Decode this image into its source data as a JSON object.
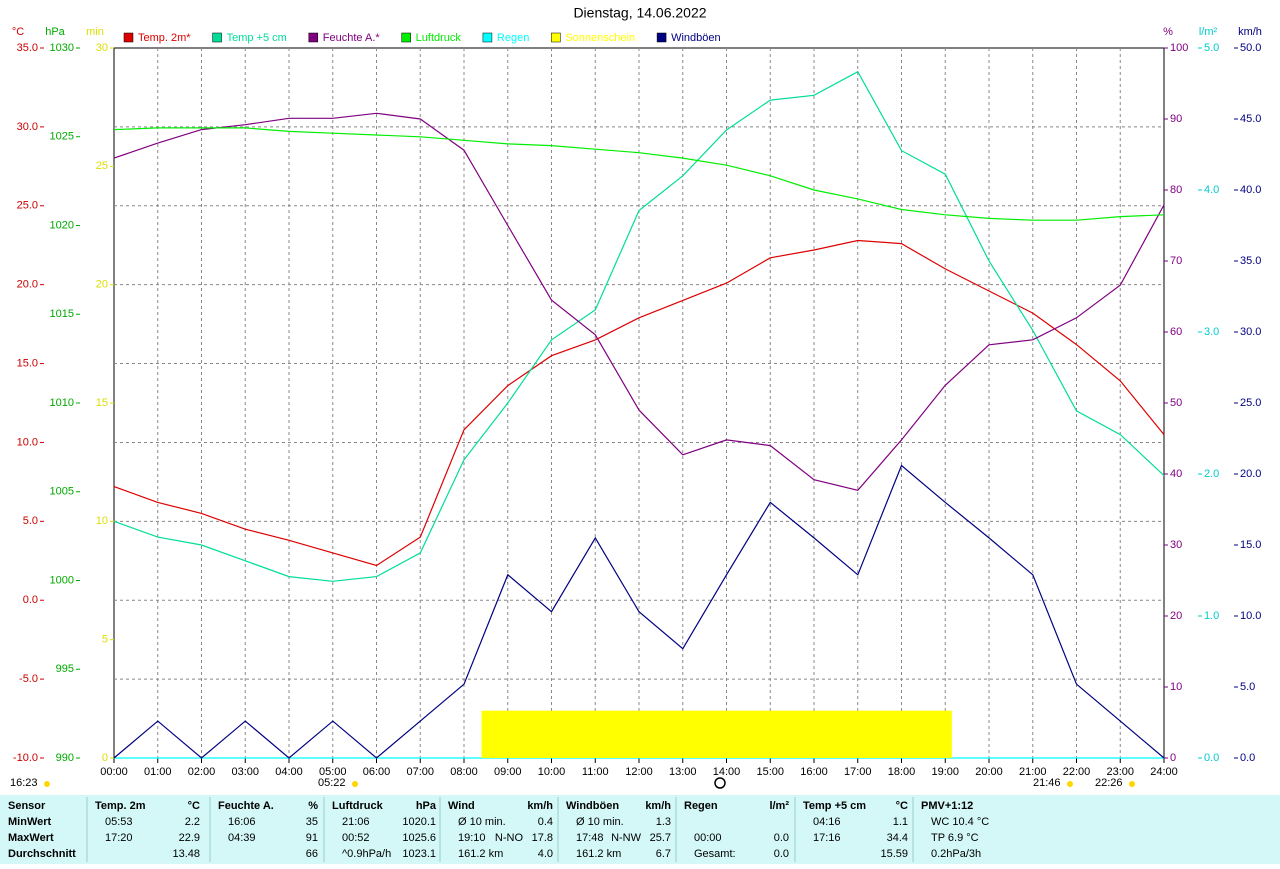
{
  "chart_data": {
    "type": "line",
    "title": "Dienstag, 14.06.2022",
    "grid": true,
    "x": [
      0,
      1,
      2,
      3,
      4,
      5,
      6,
      7,
      8,
      9,
      10,
      11,
      12,
      13,
      14,
      15,
      16,
      17,
      18,
      19,
      20,
      21,
      22,
      23,
      24
    ],
    "xlim": [
      0,
      24
    ],
    "xticks": [
      {
        "value": 0,
        "label": "00:00"
      },
      {
        "value": 1,
        "label": "01:00"
      },
      {
        "value": 2,
        "label": "02:00"
      },
      {
        "value": 3,
        "label": "03:00"
      },
      {
        "value": 4,
        "label": "04:00"
      },
      {
        "value": 5,
        "label": "05:00"
      },
      {
        "value": 6,
        "label": "06:00"
      },
      {
        "value": 7,
        "label": "07:00"
      },
      {
        "value": 8,
        "label": "08:00"
      },
      {
        "value": 9,
        "label": "09:00"
      },
      {
        "value": 10,
        "label": "10:00"
      },
      {
        "value": 11,
        "label": "11:00"
      },
      {
        "value": 12,
        "label": "12:00"
      },
      {
        "value": 13,
        "label": "13:00"
      },
      {
        "value": 14,
        "label": "14:00"
      },
      {
        "value": 15,
        "label": "15:00"
      },
      {
        "value": 16,
        "label": "16:00"
      },
      {
        "value": 17,
        "label": "17:00"
      },
      {
        "value": 18,
        "label": "18:00"
      },
      {
        "value": 19,
        "label": "19:00"
      },
      {
        "value": 20,
        "label": "20:00"
      },
      {
        "value": 21,
        "label": "21:00"
      },
      {
        "value": 22,
        "label": "22:00"
      },
      {
        "value": 23,
        "label": "23:00"
      },
      {
        "value": 24,
        "label": "24:00"
      }
    ],
    "axes": [
      {
        "label": "°C",
        "color": "#cc0000",
        "side": "left",
        "lim": [
          -10,
          35
        ],
        "grid": true,
        "ticks": [
          {
            "value": -10,
            "label": "-10.0"
          },
          {
            "value": -5,
            "label": "-5.0"
          },
          {
            "value": 0,
            "label": "0.0"
          },
          {
            "value": 5,
            "label": "5.0"
          },
          {
            "value": 10,
            "label": "10.0"
          },
          {
            "value": 15,
            "label": "15.0"
          },
          {
            "value": 20,
            "label": "20.0"
          },
          {
            "value": 25,
            "label": "25.0"
          },
          {
            "value": 30,
            "label": "30.0"
          },
          {
            "value": 35,
            "label": "35.0"
          }
        ]
      },
      {
        "label": "hPa",
        "color": "#00aa00",
        "side": "left",
        "lim": [
          990,
          1030
        ],
        "ticks": [
          990,
          995,
          1000,
          1005,
          1010,
          1015,
          1020,
          1025,
          1030
        ]
      },
      {
        "label": "min",
        "color": "#dddd00",
        "side": "left",
        "lim": [
          0,
          30
        ],
        "ticks": [
          0,
          5,
          10,
          15,
          20,
          25,
          30
        ]
      },
      {
        "label": "%",
        "color": "#800080",
        "side": "right",
        "lim": [
          0,
          100
        ],
        "ticks": [
          0,
          10,
          20,
          30,
          40,
          50,
          60,
          70,
          80,
          90,
          100
        ]
      },
      {
        "label": "l/m²",
        "color": "#00cccc",
        "side": "right",
        "lim": [
          0,
          5
        ],
        "ticks": [
          {
            "value": 0,
            "label": "0.0"
          },
          {
            "value": 1,
            "label": "1.0"
          },
          {
            "value": 2,
            "label": "2.0"
          },
          {
            "value": 3,
            "label": "3.0"
          },
          {
            "value": 4,
            "label": "4.0"
          },
          {
            "value": 5,
            "label": "5.0"
          }
        ]
      },
      {
        "label": "km/h",
        "color": "#000080",
        "side": "right",
        "lim": [
          0,
          50
        ],
        "ticks": [
          {
            "value": 0,
            "label": "0.0"
          },
          {
            "value": 5,
            "label": "5.0"
          },
          {
            "value": 10,
            "label": "10.0"
          },
          {
            "value": 15,
            "label": "15.0"
          },
          {
            "value": 20,
            "label": "20.0"
          },
          {
            "value": 25,
            "label": "25.0"
          },
          {
            "value": 30,
            "label": "30.0"
          },
          {
            "value": 35,
            "label": "35.0"
          },
          {
            "value": 40,
            "label": "40.0"
          },
          {
            "value": 45,
            "label": "45.0"
          },
          {
            "value": 50,
            "label": "50.0"
          }
        ]
      }
    ],
    "series": [
      {
        "name": "Temp. 2m*",
        "color": "#dd0000",
        "axis": 0,
        "values": [
          7.2,
          6.2,
          5.5,
          4.5,
          3.8,
          3.0,
          2.2,
          4.0,
          10.8,
          13.6,
          15.5,
          16.5,
          17.9,
          19.0,
          20.1,
          21.7,
          22.2,
          22.8,
          22.6,
          21.0,
          19.6,
          18.2,
          16.2,
          13.9,
          10.5
        ]
      },
      {
        "name": "Temp +5 cm",
        "color": "#00dd99",
        "axis": 0,
        "values": [
          5.0,
          4.0,
          3.5,
          2.5,
          1.5,
          1.2,
          1.5,
          3.0,
          8.9,
          12.5,
          16.5,
          18.4,
          24.7,
          26.9,
          29.8,
          31.7,
          32.0,
          33.5,
          28.5,
          27.0,
          21.5,
          17.1,
          12.0,
          10.5,
          7.9
        ]
      },
      {
        "name": "Feuchte A.*",
        "color": "#800080",
        "axis": 3,
        "values": [
          84.5,
          86.6,
          88.5,
          89.2,
          90.1,
          90.1,
          90.8,
          90.0,
          85.6,
          75.0,
          64.5,
          59.6,
          49.0,
          42.7,
          44.8,
          44.0,
          39.2,
          37.7,
          44.8,
          52.5,
          58.2,
          58.9,
          62.0,
          66.6,
          77.9
        ]
      },
      {
        "name": "Luftdruck",
        "color": "#00ee00",
        "axis": 1,
        "values": [
          1025.4,
          1025.5,
          1025.5,
          1025.5,
          1025.3,
          1025.2,
          1025.1,
          1025.0,
          1024.8,
          1024.6,
          1024.5,
          1024.3,
          1024.1,
          1023.8,
          1023.4,
          1022.8,
          1022.0,
          1021.5,
          1020.9,
          1020.6,
          1020.4,
          1020.3,
          1020.3,
          1020.5,
          1020.6
        ]
      },
      {
        "name": "Regen",
        "color": "#00ffff",
        "axis": 4,
        "values": [
          0,
          0,
          0,
          0,
          0,
          0,
          0,
          0,
          0,
          0,
          0,
          0,
          0,
          0,
          0,
          0,
          0,
          0,
          0,
          0,
          0,
          0,
          0,
          0,
          0
        ]
      },
      {
        "name": "Sonnenschein",
        "color": "#ffff00",
        "axis": 2,
        "style": "block",
        "x": [
          8.4,
          19.15
        ],
        "values": [
          2,
          2
        ]
      },
      {
        "name": "Windböen",
        "color": "#000080",
        "axis": 5,
        "values": [
          0,
          2.6,
          0,
          2.6,
          0,
          2.6,
          0,
          2.6,
          5.2,
          12.9,
          10.3,
          15.5,
          10.3,
          7.7,
          12.9,
          18.0,
          15.5,
          12.9,
          20.6,
          18.0,
          15.5,
          12.9,
          5.2,
          2.6,
          0
        ]
      }
    ],
    "annotations": [
      "16:23",
      "05:22",
      "21:46",
      "22:26"
    ]
  },
  "stats": {
    "row_labels": [
      "Sensor",
      "MinWert",
      "MaxWert",
      "Durchschnitt"
    ],
    "columns": [
      {
        "name": "Temp. 2m",
        "unit": "°C",
        "rows": [
          {
            "time": "05:53",
            "value": "2.2"
          },
          {
            "time": "17:20",
            "value": "22.9"
          },
          {
            "value": "13.48"
          }
        ]
      },
      {
        "name": "Feuchte A.",
        "unit": "%",
        "rows": [
          {
            "time": "16:06",
            "value": "35"
          },
          {
            "time": "04:39",
            "value": "91"
          },
          {
            "value": "66"
          }
        ]
      },
      {
        "name": "Luftdruck",
        "unit": "hPa",
        "rows": [
          {
            "time": "21:06",
            "value": "1020.1"
          },
          {
            "time": "00:52",
            "value": "1025.6"
          },
          {
            "time": "^0.9hPa/h",
            "value": "1023.1"
          }
        ]
      },
      {
        "name": "Wind",
        "unit": "km/h",
        "rows": [
          {
            "time": "Ø 10 min.",
            "value": "0.4"
          },
          {
            "time": "19:10",
            "dir": "N-NO",
            "value": "17.8"
          },
          {
            "time": "161.2 km",
            "value": "4.0"
          }
        ]
      },
      {
        "name": "Windböen",
        "unit": "km/h",
        "rows": [
          {
            "time": "Ø 10 min.",
            "value": "1.3"
          },
          {
            "time": "17:48",
            "dir": "N-NW",
            "value": "25.7"
          },
          {
            "time": "161.2 km",
            "value": "6.7"
          }
        ]
      },
      {
        "name": "Regen",
        "unit": "l/m²",
        "rows": [
          {},
          {
            "time": "00:00",
            "value": "0.0"
          },
          {
            "time": "Gesamt:",
            "value": "0.0"
          }
        ]
      },
      {
        "name": "Temp +5 cm",
        "unit": "°C",
        "rows": [
          {
            "time": "04:16",
            "value": "1.1"
          },
          {
            "time": "17:16",
            "value": "34.4"
          },
          {
            "value": "15.59"
          }
        ]
      },
      {
        "name": "PMV+1:12",
        "rows": [
          {
            "time": "WC 10.4 °C"
          },
          {
            "time": "TP 6.9 °C"
          },
          {
            "time": "0.2hPa/3h"
          }
        ]
      }
    ]
  }
}
